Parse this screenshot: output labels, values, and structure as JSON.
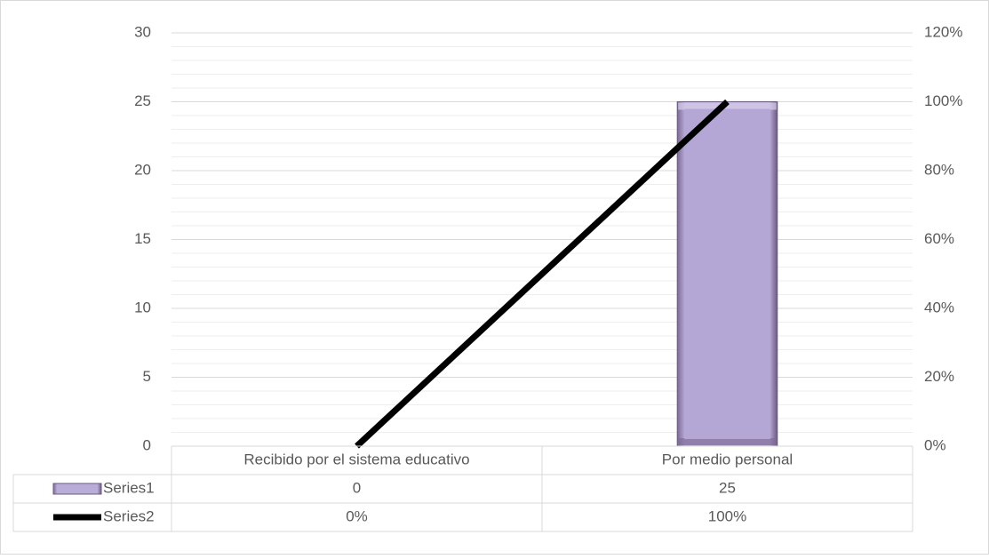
{
  "chart_data": {
    "type": "bar",
    "categories": [
      "Recibido por el sistema educativo",
      "Por medio personal"
    ],
    "series": [
      {
        "name": "Series1",
        "type": "bar",
        "axis": "primary",
        "values": [
          0,
          25
        ],
        "labels": [
          "0",
          "25"
        ]
      },
      {
        "name": "Series2",
        "type": "line",
        "axis": "secondary",
        "values": [
          0,
          1.0
        ],
        "labels": [
          "0%",
          "100%"
        ]
      }
    ],
    "y_primary": {
      "min": 0,
      "max": 30,
      "step": 5,
      "ticks": [
        "0",
        "5",
        "10",
        "15",
        "20",
        "25",
        "30"
      ]
    },
    "y_secondary": {
      "min": 0,
      "max": 1.2,
      "step": 0.2,
      "ticks": [
        "0%",
        "20%",
        "40%",
        "60%",
        "80%",
        "100%",
        "120%"
      ]
    },
    "grid": true,
    "legend": "data-table",
    "colors": {
      "bar_fill": "#b4a7d6",
      "bar_edge": "#6b5a80",
      "line": "#000000",
      "grid": "#d9d9d9",
      "text": "#595959"
    }
  }
}
